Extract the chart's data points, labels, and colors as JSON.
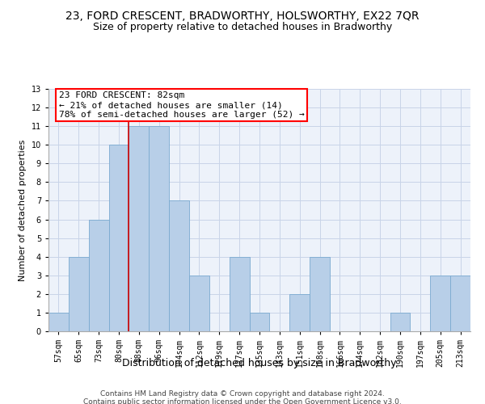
{
  "title": "23, FORD CRESCENT, BRADWORTHY, HOLSWORTHY, EX22 7QR",
  "subtitle": "Size of property relative to detached houses in Bradworthy",
  "xlabel": "Distribution of detached houses by size in Bradworthy",
  "ylabel": "Number of detached properties",
  "categories": [
    "57sqm",
    "65sqm",
    "73sqm",
    "80sqm",
    "88sqm",
    "96sqm",
    "104sqm",
    "112sqm",
    "119sqm",
    "127sqm",
    "135sqm",
    "143sqm",
    "151sqm",
    "158sqm",
    "166sqm",
    "174sqm",
    "182sqm",
    "190sqm",
    "197sqm",
    "205sqm",
    "213sqm"
  ],
  "values": [
    1,
    4,
    6,
    10,
    11,
    11,
    7,
    3,
    0,
    4,
    1,
    0,
    2,
    4,
    0,
    0,
    0,
    1,
    0,
    3,
    3
  ],
  "bar_color": "#b8cfe8",
  "bar_edge_color": "#7aaad0",
  "annotation_line1": "23 FORD CRESCENT: 82sqm",
  "annotation_line2": "← 21% of detached houses are smaller (14)",
  "annotation_line3": "78% of semi-detached houses are larger (52) →",
  "annotation_box_color": "white",
  "annotation_box_edge_color": "red",
  "ylim": [
    0,
    13
  ],
  "yticks": [
    0,
    1,
    2,
    3,
    4,
    5,
    6,
    7,
    8,
    9,
    10,
    11,
    12,
    13
  ],
  "footer1": "Contains HM Land Registry data © Crown copyright and database right 2024.",
  "footer2": "Contains public sector information licensed under the Open Government Licence v3.0.",
  "bg_color": "#edf2fa",
  "grid_color": "#c8d4e8",
  "title_fontsize": 10,
  "subtitle_fontsize": 9,
  "tick_fontsize": 7,
  "ylabel_fontsize": 8,
  "xlabel_fontsize": 9,
  "annotation_fontsize": 8,
  "footer_fontsize": 6.5,
  "red_line_color": "#cc0000",
  "red_line_x": 3.5
}
